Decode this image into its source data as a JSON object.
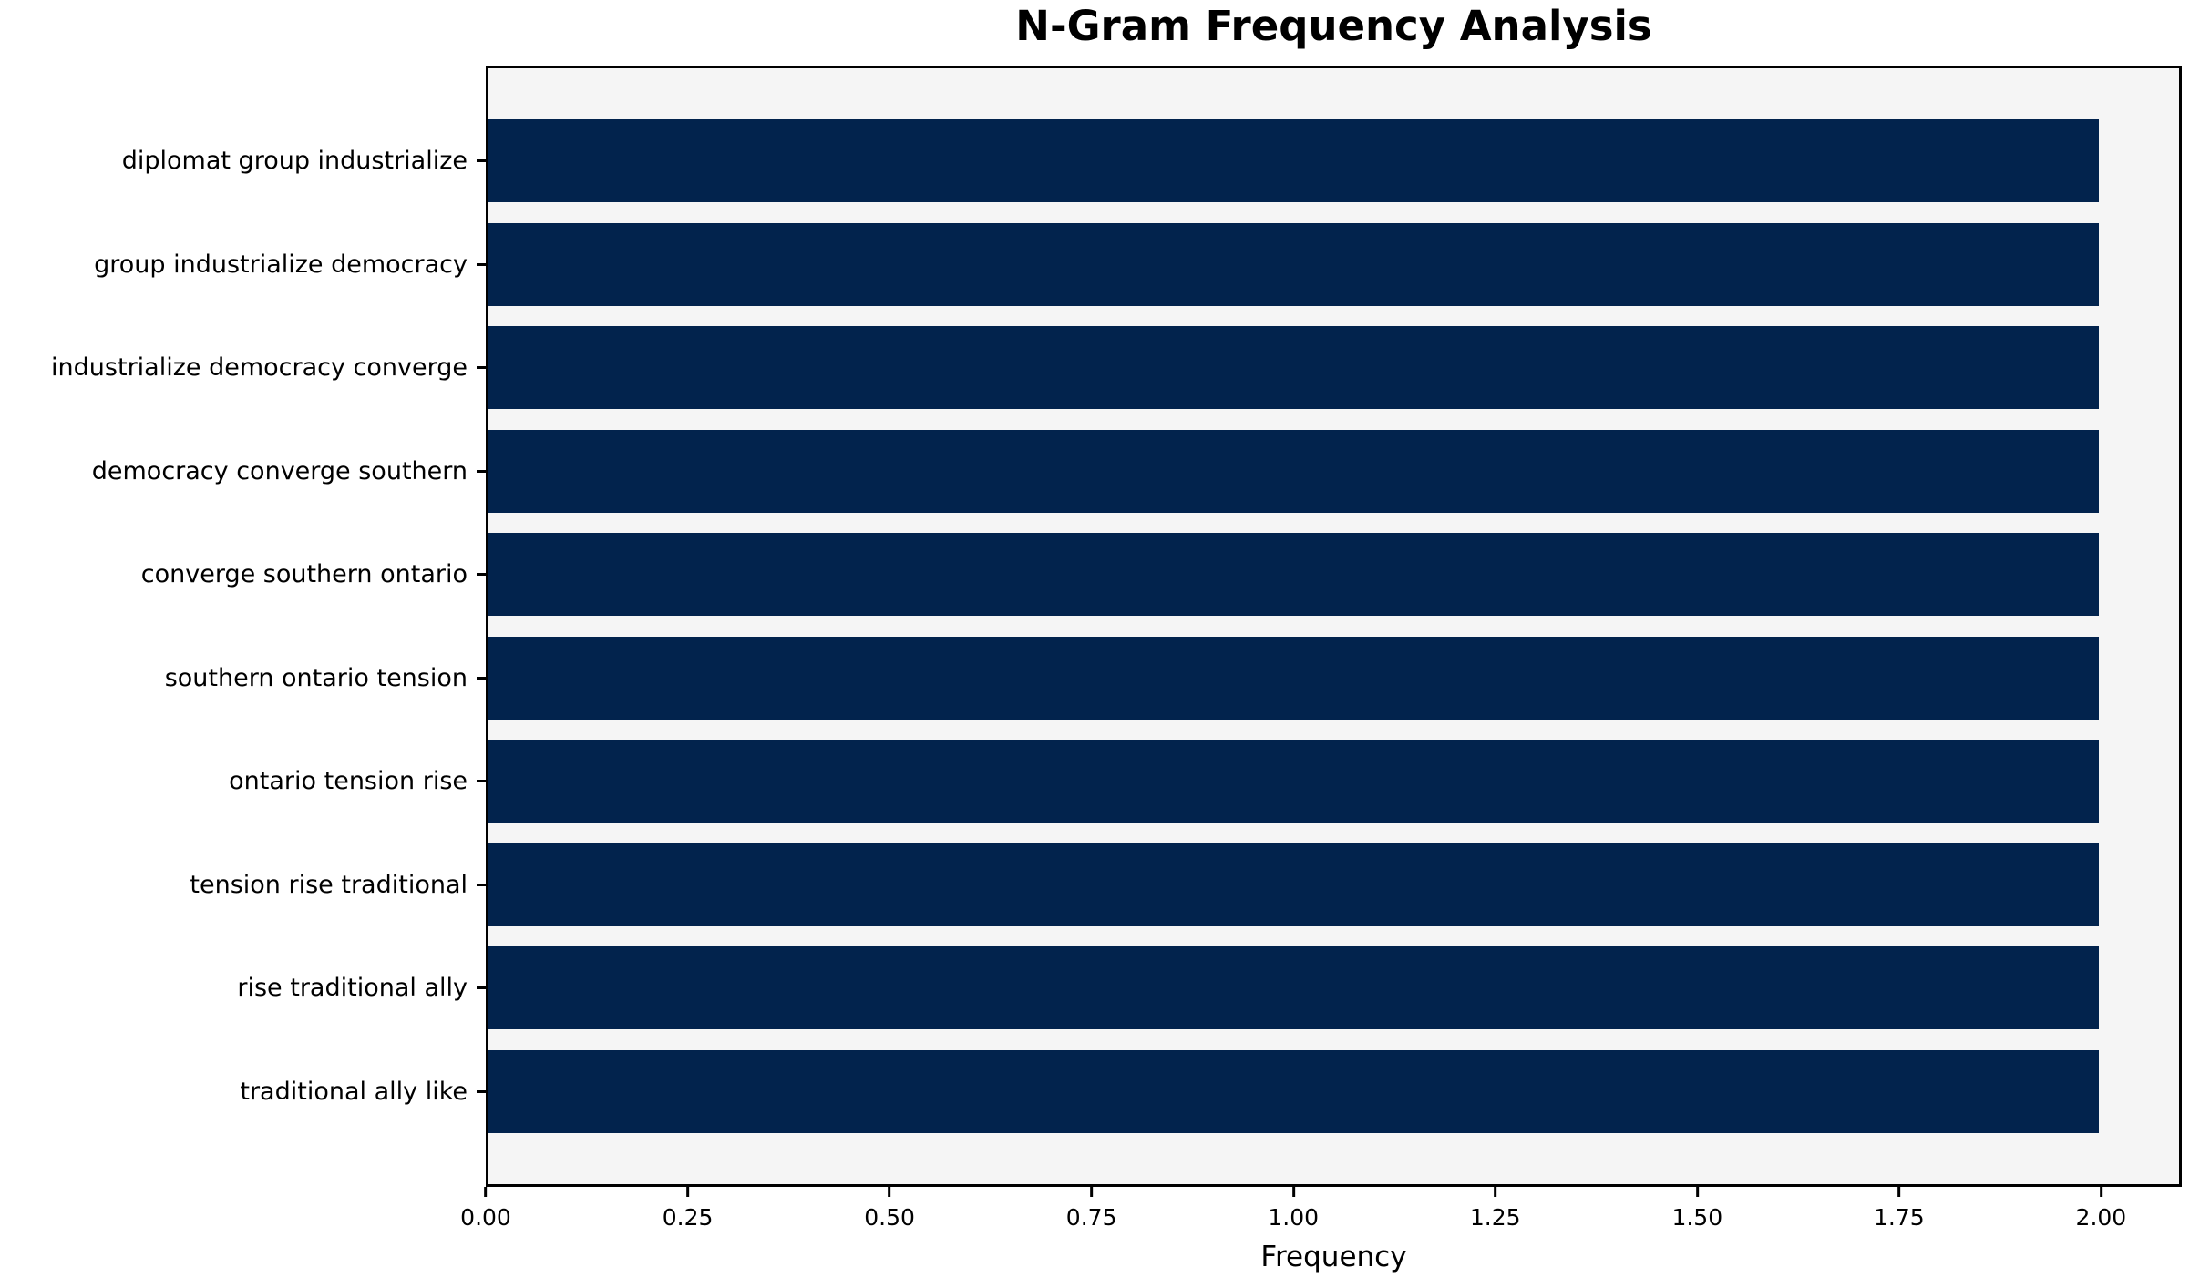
{
  "chart_data": {
    "type": "bar",
    "orientation": "horizontal",
    "title": "N-Gram Frequency Analysis",
    "xlabel": "Frequency",
    "ylabel": "",
    "categories": [
      "diplomat group industrialize",
      "group industrialize democracy",
      "industrialize democracy converge",
      "democracy converge southern",
      "converge southern ontario",
      "southern ontario tension",
      "ontario tension rise",
      "tension rise traditional",
      "rise traditional ally",
      "traditional ally like"
    ],
    "values": [
      2,
      2,
      2,
      2,
      2,
      2,
      2,
      2,
      2,
      2
    ],
    "xlim": [
      0,
      2.1
    ],
    "x_tick_labels": [
      "0.00",
      "0.25",
      "0.50",
      "0.75",
      "1.00",
      "1.25",
      "1.50",
      "1.75",
      "2.00"
    ],
    "grid": false,
    "legend": "none",
    "colors": {
      "bar": "#02234d",
      "plot_bg": "#f5f5f5",
      "figure_bg": "#ffffff",
      "text": "#000000",
      "spine": "#000000"
    }
  }
}
